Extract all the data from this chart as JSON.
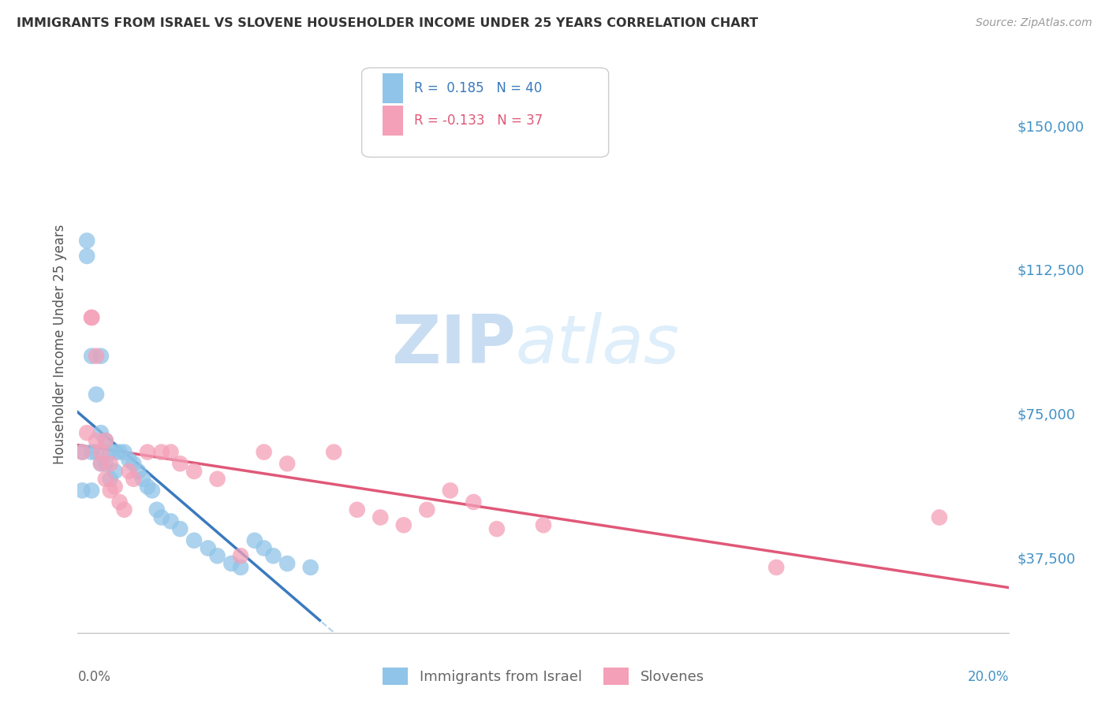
{
  "title": "IMMIGRANTS FROM ISRAEL VS SLOVENE HOUSEHOLDER INCOME UNDER 25 YEARS CORRELATION CHART",
  "source": "Source: ZipAtlas.com",
  "ylabel": "Householder Income Under 25 years",
  "legend_label1": "Immigrants from Israel",
  "legend_label2": "Slovenes",
  "R1": 0.185,
  "N1": 40,
  "R2": -0.133,
  "N2": 37,
  "color_blue": "#90c4e8",
  "color_pink": "#f4a0b8",
  "line_blue": "#3a7abf",
  "line_pink": "#e05878",
  "line_dashed_color": "#a8cce8",
  "watermark_color": "#c8dff0",
  "background": "#ffffff",
  "xmin": 0.0,
  "xmax": 0.2,
  "ymin": 18000,
  "ymax": 168000,
  "ytick_values": [
    37500,
    75000,
    112500,
    150000
  ],
  "ytick_labels": [
    "$37,500",
    "$75,000",
    "$112,500",
    "$150,000"
  ],
  "blue_x": [
    0.001,
    0.001,
    0.002,
    0.002,
    0.003,
    0.003,
    0.003,
    0.004,
    0.004,
    0.005,
    0.005,
    0.005,
    0.006,
    0.006,
    0.007,
    0.007,
    0.008,
    0.008,
    0.009,
    0.01,
    0.011,
    0.012,
    0.013,
    0.014,
    0.015,
    0.016,
    0.017,
    0.018,
    0.02,
    0.022,
    0.025,
    0.028,
    0.03,
    0.033,
    0.035,
    0.038,
    0.04,
    0.042,
    0.045,
    0.05
  ],
  "blue_y": [
    65000,
    55000,
    120000,
    116000,
    90000,
    65000,
    55000,
    80000,
    65000,
    90000,
    70000,
    62000,
    68000,
    62000,
    65000,
    58000,
    65000,
    60000,
    65000,
    65000,
    63000,
    62000,
    60000,
    58000,
    56000,
    55000,
    50000,
    48000,
    47000,
    45000,
    42000,
    40000,
    38000,
    36000,
    35000,
    42000,
    40000,
    38000,
    36000,
    35000
  ],
  "pink_x": [
    0.001,
    0.002,
    0.003,
    0.003,
    0.004,
    0.004,
    0.005,
    0.005,
    0.006,
    0.006,
    0.007,
    0.007,
    0.008,
    0.009,
    0.01,
    0.011,
    0.012,
    0.015,
    0.018,
    0.02,
    0.022,
    0.025,
    0.03,
    0.035,
    0.04,
    0.045,
    0.055,
    0.06,
    0.065,
    0.07,
    0.075,
    0.08,
    0.085,
    0.09,
    0.1,
    0.15,
    0.185
  ],
  "pink_y": [
    65000,
    70000,
    100000,
    100000,
    90000,
    68000,
    65000,
    62000,
    68000,
    58000,
    62000,
    55000,
    56000,
    52000,
    50000,
    60000,
    58000,
    65000,
    65000,
    65000,
    62000,
    60000,
    58000,
    38000,
    65000,
    62000,
    65000,
    50000,
    48000,
    46000,
    50000,
    55000,
    52000,
    45000,
    46000,
    35000,
    48000
  ]
}
